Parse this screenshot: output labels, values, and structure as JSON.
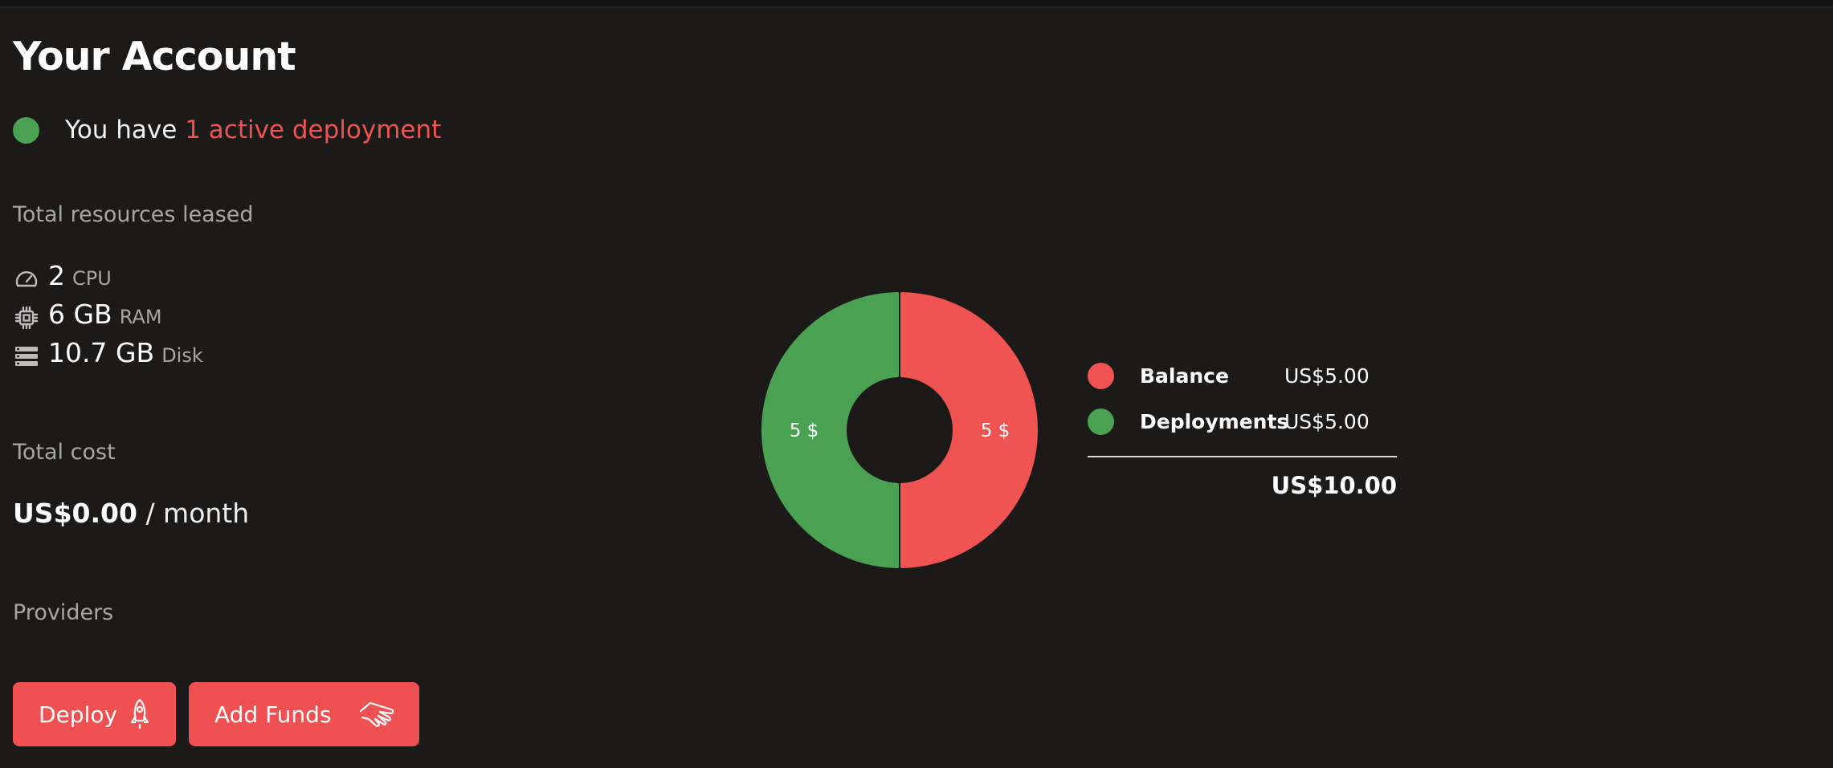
{
  "page_title": "Your Account",
  "status": {
    "prefix": "You have ",
    "link_text": "1 active deployment",
    "dot_color": "#4aa152"
  },
  "resources": {
    "label": "Total resources leased",
    "items": [
      {
        "icon": "speedometer-icon",
        "value": "2",
        "unit": "CPU"
      },
      {
        "icon": "chip-icon",
        "value": "6 GB",
        "unit": "RAM"
      },
      {
        "icon": "storage-icon",
        "value": "10.7 GB",
        "unit": "Disk"
      }
    ]
  },
  "cost": {
    "label": "Total cost",
    "value": "US$0.00",
    "suffix": " / month"
  },
  "providers": {
    "label": "Providers"
  },
  "buttons": {
    "deploy": "Deploy",
    "deploy_icon": "rocket-icon",
    "add_funds": "Add Funds",
    "add_funds_icon": "hand-coins-icon"
  },
  "chart_data": {
    "type": "pie",
    "variant": "donut",
    "categories": [
      "Balance",
      "Deployments"
    ],
    "values": [
      5,
      5
    ],
    "slice_labels": [
      "5 $",
      "5 $"
    ],
    "colors": [
      "#ef5352",
      "#4aa152"
    ]
  },
  "legend": {
    "items": [
      {
        "name": "Balance",
        "value": "US$5.00",
        "color": "#ef5352"
      },
      {
        "name": "Deployments",
        "value": "US$5.00",
        "color": "#4aa152"
      }
    ],
    "total": "US$10.00"
  },
  "colors": {
    "accent": "#ef5052",
    "background": "#1b1a19",
    "success": "#4aa152"
  }
}
